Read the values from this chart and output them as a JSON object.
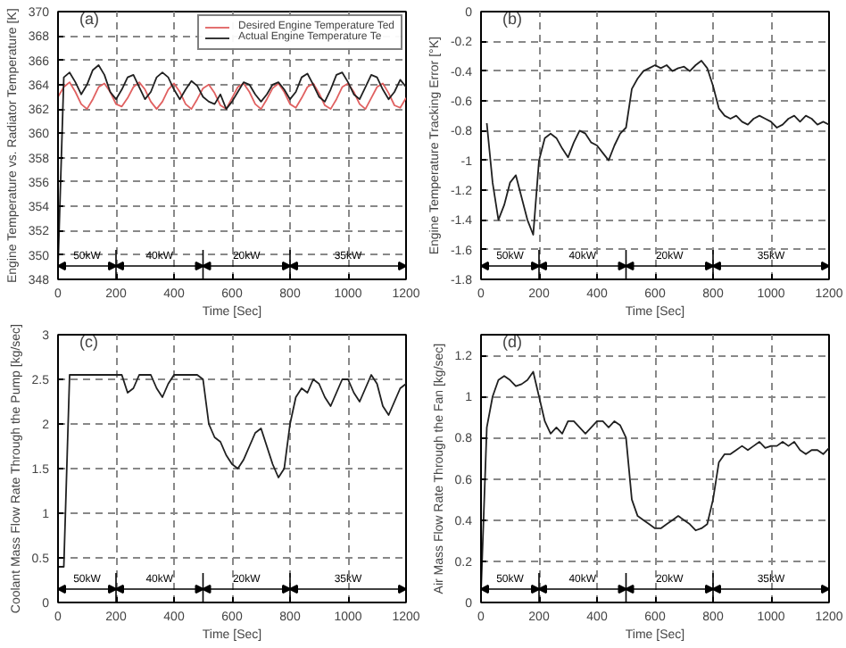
{
  "chart_data": [
    {
      "type": "line",
      "title": "(a)",
      "xlabel": "Time [Sec]",
      "ylabel": "Engine Temperature vs. Radiator Temperature [K]",
      "x": [
        0,
        20,
        40,
        60,
        80,
        100,
        120,
        140,
        160,
        180,
        200,
        220,
        240,
        260,
        280,
        300,
        320,
        340,
        360,
        380,
        400,
        420,
        440,
        460,
        480,
        500,
        520,
        540,
        560,
        580,
        600,
        620,
        640,
        660,
        680,
        700,
        720,
        740,
        760,
        780,
        800,
        820,
        840,
        860,
        880,
        900,
        920,
        940,
        960,
        980,
        1000,
        1020,
        1040,
        1060,
        1080,
        1100,
        1120,
        1140,
        1160,
        1180,
        1200
      ],
      "series": [
        {
          "name": "Desired Engine Temperature Ted",
          "color": "#e06060",
          "values": [
            363.0,
            363.8,
            364.2,
            363.4,
            362.4,
            362.0,
            362.8,
            363.8,
            364.1,
            363.4,
            362.4,
            362.2,
            362.9,
            363.8,
            364.2,
            363.6,
            362.6,
            362.0,
            362.6,
            363.6,
            364.1,
            363.4,
            362.4,
            362.0,
            362.8,
            363.7,
            364.0,
            363.3,
            362.3,
            362.0,
            362.9,
            363.8,
            364.1,
            363.4,
            362.4,
            362.0,
            362.8,
            363.7,
            364.1,
            363.4,
            362.4,
            362.1,
            362.9,
            363.8,
            364.1,
            363.3,
            362.3,
            362.0,
            362.8,
            363.8,
            364.1,
            363.4,
            362.4,
            362.0,
            362.9,
            363.8,
            364.1,
            363.3,
            362.3,
            362.1,
            362.9
          ]
        },
        {
          "name": "Actual Engine Temperature Te",
          "color": "#202020",
          "values": [
            349.0,
            364.6,
            365.0,
            364.2,
            363.2,
            364.0,
            365.2,
            365.6,
            364.8,
            363.4,
            362.8,
            363.6,
            364.6,
            364.8,
            363.8,
            362.8,
            363.4,
            364.6,
            365.0,
            364.6,
            363.6,
            362.8,
            363.6,
            364.3,
            363.9,
            363.0,
            362.6,
            362.4,
            363.2,
            362.0,
            362.6,
            363.4,
            364.2,
            364.0,
            363.2,
            362.6,
            363.2,
            364.0,
            364.2,
            363.6,
            362.8,
            363.4,
            364.6,
            364.9,
            364.0,
            363.0,
            362.6,
            363.6,
            364.8,
            365.0,
            364.2,
            363.2,
            362.8,
            363.8,
            364.8,
            364.6,
            363.6,
            362.8,
            363.4,
            364.4,
            363.8
          ]
        }
      ],
      "xlim": [
        0,
        1200
      ],
      "xticks": [
        0,
        200,
        400,
        600,
        800,
        1000,
        1200
      ],
      "ylim": [
        348,
        370
      ],
      "yticks": [
        348,
        350,
        352,
        354,
        356,
        358,
        360,
        362,
        364,
        366,
        368,
        370
      ],
      "grid": true,
      "legend": "top right",
      "ref_lines": [
        {
          "axis": "x",
          "value": 200
        },
        {
          "axis": "x",
          "value": 500
        },
        {
          "axis": "x",
          "value": 800
        }
      ],
      "annotations": [
        "50kW",
        "40kW",
        "20kW",
        "35kW"
      ]
    },
    {
      "type": "line",
      "title": "(b)",
      "xlabel": "Time [Sec]",
      "ylabel": "Engine Temperature Tracking Error [°K]",
      "series": [
        {
          "color": "#202020",
          "x": [
            20,
            40,
            60,
            80,
            100,
            120,
            140,
            160,
            180,
            200,
            220,
            240,
            260,
            280,
            300,
            320,
            340,
            360,
            380,
            400,
            420,
            440,
            460,
            480,
            500,
            520,
            540,
            560,
            580,
            600,
            620,
            640,
            660,
            680,
            700,
            720,
            740,
            760,
            780,
            800,
            820,
            840,
            860,
            880,
            900,
            920,
            940,
            960,
            980,
            1000,
            1020,
            1040,
            1060,
            1080,
            1100,
            1120,
            1140,
            1160,
            1180,
            1200
          ],
          "values": [
            -0.75,
            -1.15,
            -1.4,
            -1.3,
            -1.15,
            -1.1,
            -1.25,
            -1.4,
            -1.5,
            -1.0,
            -0.85,
            -0.82,
            -0.85,
            -0.92,
            -0.98,
            -0.88,
            -0.8,
            -0.82,
            -0.88,
            -0.9,
            -0.95,
            -1.0,
            -0.9,
            -0.82,
            -0.78,
            -0.52,
            -0.45,
            -0.4,
            -0.38,
            -0.36,
            -0.38,
            -0.36,
            -0.4,
            -0.38,
            -0.37,
            -0.4,
            -0.36,
            -0.33,
            -0.38,
            -0.5,
            -0.65,
            -0.7,
            -0.72,
            -0.7,
            -0.74,
            -0.76,
            -0.72,
            -0.7,
            -0.72,
            -0.74,
            -0.78,
            -0.76,
            -0.72,
            -0.7,
            -0.74,
            -0.7,
            -0.72,
            -0.76,
            -0.74,
            -0.76
          ]
        }
      ],
      "xlim": [
        0,
        1200
      ],
      "xticks": [
        0,
        200,
        400,
        600,
        800,
        1000,
        1200
      ],
      "ylim": [
        -1.8,
        0
      ],
      "yticks": [
        -1.8,
        -1.6,
        -1.4,
        -1.2,
        -1,
        -0.8,
        -0.6,
        -0.4,
        -0.2,
        0
      ],
      "grid": true,
      "ref_lines": [
        {
          "axis": "x",
          "value": 200
        },
        {
          "axis": "x",
          "value": 500
        },
        {
          "axis": "x",
          "value": 800
        }
      ],
      "annotations": [
        "50kW",
        "40kW",
        "20kW",
        "35kW"
      ]
    },
    {
      "type": "line",
      "title": "(c)",
      "xlabel": "Time [Sec]",
      "ylabel": "Coolant Mass Flow Rate Through the Pump [kg/sec]",
      "x": [
        0,
        20,
        40,
        60,
        80,
        100,
        120,
        140,
        160,
        180,
        200,
        220,
        240,
        260,
        280,
        300,
        320,
        340,
        360,
        380,
        400,
        420,
        440,
        460,
        480,
        500,
        520,
        540,
        560,
        580,
        600,
        620,
        640,
        660,
        680,
        700,
        720,
        740,
        760,
        780,
        800,
        820,
        840,
        860,
        880,
        900,
        920,
        940,
        960,
        980,
        1000,
        1020,
        1040,
        1060,
        1080,
        1100,
        1120,
        1140,
        1160,
        1180,
        1200
      ],
      "series": [
        {
          "color": "#202020",
          "values": [
            0.4,
            0.4,
            2.55,
            2.55,
            2.55,
            2.55,
            2.55,
            2.55,
            2.55,
            2.55,
            2.55,
            2.55,
            2.35,
            2.4,
            2.55,
            2.55,
            2.55,
            2.4,
            2.3,
            2.45,
            2.55,
            2.55,
            2.55,
            2.55,
            2.55,
            2.5,
            2.0,
            1.85,
            1.8,
            1.65,
            1.55,
            1.5,
            1.6,
            1.75,
            1.9,
            1.95,
            1.75,
            1.55,
            1.4,
            1.5,
            2.0,
            2.3,
            2.4,
            2.35,
            2.5,
            2.45,
            2.3,
            2.2,
            2.35,
            2.5,
            2.5,
            2.35,
            2.25,
            2.4,
            2.55,
            2.45,
            2.2,
            2.1,
            2.25,
            2.4,
            2.45
          ]
        }
      ],
      "xlim": [
        0,
        1200
      ],
      "xticks": [
        0,
        200,
        400,
        600,
        800,
        1000,
        1200
      ],
      "ylim": [
        0,
        3
      ],
      "yticks": [
        0,
        0.5,
        1,
        1.5,
        2,
        2.5,
        3
      ],
      "grid": true,
      "ref_lines": [
        {
          "axis": "x",
          "value": 200
        },
        {
          "axis": "x",
          "value": 500
        },
        {
          "axis": "x",
          "value": 800
        }
      ],
      "annotations": [
        "50kW",
        "40kW",
        "20kW",
        "35kW"
      ]
    },
    {
      "type": "line",
      "title": "(d)",
      "xlabel": "Time [Sec]",
      "ylabel": "Air Mass Flow Rate Through the Fan [kg/sec]",
      "x": [
        0,
        20,
        40,
        60,
        80,
        100,
        120,
        140,
        160,
        180,
        200,
        220,
        240,
        260,
        280,
        300,
        320,
        340,
        360,
        380,
        400,
        420,
        440,
        460,
        480,
        500,
        520,
        540,
        560,
        580,
        600,
        620,
        640,
        660,
        680,
        700,
        720,
        740,
        760,
        780,
        800,
        820,
        840,
        860,
        880,
        900,
        920,
        940,
        960,
        980,
        1000,
        1020,
        1040,
        1060,
        1080,
        1100,
        1120,
        1140,
        1160,
        1180,
        1200
      ],
      "series": [
        {
          "color": "#202020",
          "values": [
            0.05,
            0.85,
            1.0,
            1.08,
            1.1,
            1.08,
            1.05,
            1.06,
            1.08,
            1.12,
            1.0,
            0.88,
            0.82,
            0.85,
            0.82,
            0.88,
            0.88,
            0.85,
            0.82,
            0.85,
            0.88,
            0.88,
            0.85,
            0.88,
            0.86,
            0.8,
            0.5,
            0.42,
            0.4,
            0.38,
            0.36,
            0.36,
            0.38,
            0.4,
            0.42,
            0.4,
            0.38,
            0.35,
            0.36,
            0.38,
            0.5,
            0.68,
            0.72,
            0.72,
            0.74,
            0.76,
            0.74,
            0.76,
            0.78,
            0.75,
            0.76,
            0.76,
            0.78,
            0.76,
            0.78,
            0.74,
            0.72,
            0.74,
            0.74,
            0.72,
            0.75
          ]
        }
      ],
      "xlim": [
        0,
        1200
      ],
      "xticks": [
        0,
        200,
        400,
        600,
        800,
        1000,
        1200
      ],
      "ylim": [
        0,
        1.3
      ],
      "yticks": [
        0,
        0.2,
        0.4,
        0.6,
        0.8,
        1,
        1.2
      ],
      "grid": true,
      "ref_lines": [
        {
          "axis": "x",
          "value": 200
        },
        {
          "axis": "x",
          "value": 500
        },
        {
          "axis": "x",
          "value": 800
        }
      ],
      "annotations": [
        "50kW",
        "40kW",
        "20kW",
        "35kW"
      ]
    }
  ]
}
